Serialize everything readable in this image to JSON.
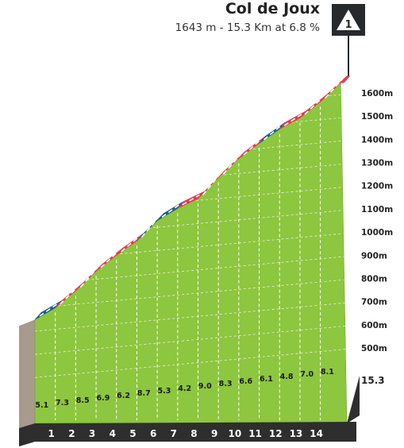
{
  "header": {
    "title": "Col de Joux",
    "subtitle": "1643 m - 15.3 Km at 6.8 %",
    "category": "1"
  },
  "colors": {
    "terrain": "#8dc63f",
    "base": "#2e2e2e",
    "start_wall": "#a89a8c",
    "steep": "#e53a4f",
    "moderate": "#1f5d8a",
    "stripe": "#ffffff"
  },
  "chart_data": {
    "type": "area",
    "title": "Col de Joux",
    "distance_km": 15.3,
    "total_label": "15.3",
    "km_markers": [
      1,
      2,
      3,
      4,
      5,
      6,
      7,
      8,
      9,
      10,
      11,
      12,
      13,
      14
    ],
    "gradients": [
      5.1,
      7.3,
      8.5,
      6.9,
      6.2,
      8.7,
      5.3,
      4.2,
      9.0,
      8.3,
      6.6,
      6.1,
      4.8,
      7.0,
      8.1
    ],
    "gradient_labels": [
      "5.1",
      "7.3",
      "8.5",
      "6.9",
      "6.2",
      "8.7",
      "5.3",
      "4.2",
      "9.0",
      "8.3",
      "6.6",
      "6.1",
      "4.8",
      "7.0",
      "8.1"
    ],
    "segment_class": [
      "moderate",
      "steep",
      "steep",
      "steep",
      "steep",
      "moderate",
      "moderate",
      "steep",
      "steep",
      "steep",
      "steep",
      "moderate",
      "steep",
      "steep",
      "steep"
    ],
    "y_ticks": [
      500,
      600,
      700,
      800,
      900,
      1000,
      1100,
      1200,
      1300,
      1400,
      1500,
      1600
    ],
    "y_tick_labels": [
      "500m",
      "600m",
      "700m",
      "800m",
      "900m",
      "1000m",
      "1100m",
      "1200m",
      "1300m",
      "1400m",
      "1500m",
      "1600m"
    ],
    "ylim": [
      400,
      1643
    ],
    "grid": true
  }
}
